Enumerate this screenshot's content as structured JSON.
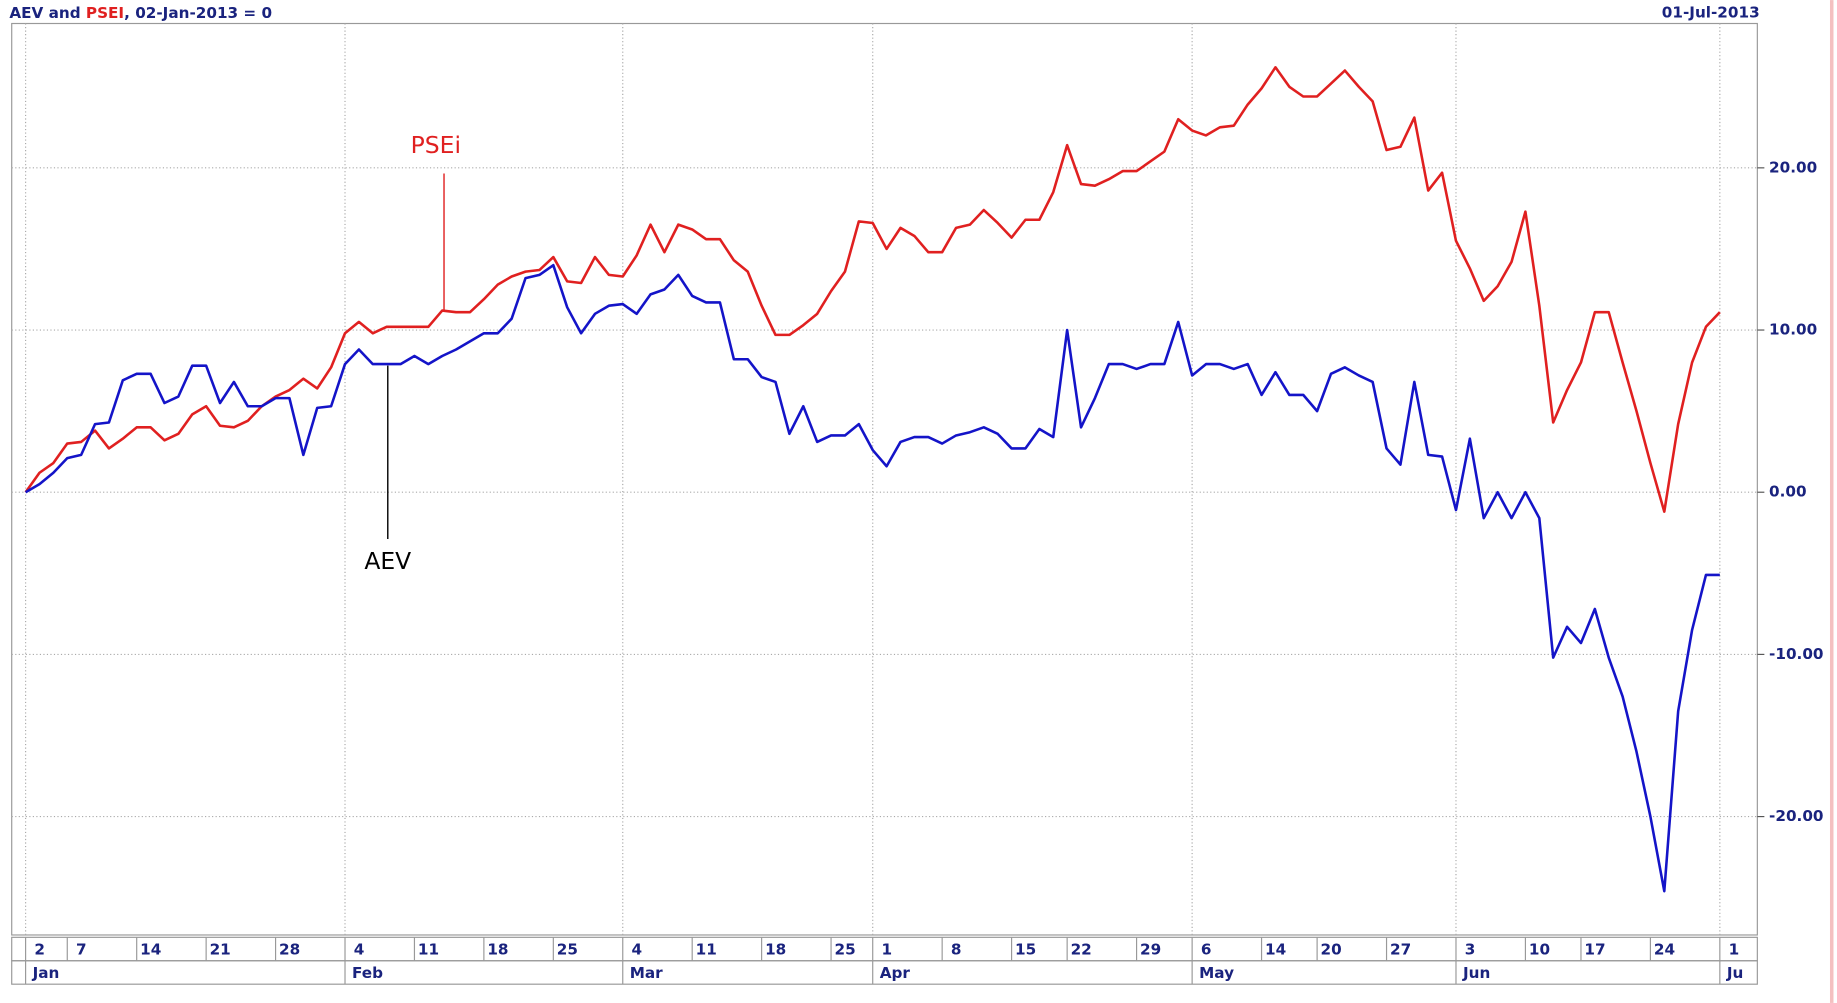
{
  "chart_data": {
    "type": "line",
    "title": [
      "AEV and ",
      "PSEI",
      ", 02-Jan-2013 = 0"
    ],
    "end_date": "01-Jul-2013",
    "annotations": [
      "PSEi",
      "AEV"
    ],
    "x": [
      0,
      1,
      2,
      3,
      4,
      5,
      6,
      7,
      8,
      9,
      10,
      11,
      12,
      13,
      14,
      15,
      16,
      17,
      18,
      19,
      20,
      21,
      22,
      23,
      24,
      25,
      26,
      27,
      28,
      29,
      30,
      31,
      32,
      33,
      34,
      35,
      36,
      37,
      38,
      39,
      40,
      41,
      42,
      43,
      44,
      45,
      46,
      47,
      48,
      49,
      50,
      51,
      52,
      53,
      54,
      55,
      56,
      57,
      58,
      59,
      60,
      61,
      62,
      63,
      64,
      65,
      66,
      67,
      68,
      69,
      70,
      71,
      72,
      73,
      74,
      75,
      76,
      77,
      78,
      79,
      80,
      81,
      82,
      83,
      84,
      85,
      86,
      87,
      88,
      89,
      90,
      91,
      92,
      93,
      94,
      95,
      96,
      97,
      98,
      99,
      100,
      101,
      102,
      103,
      104,
      105,
      106,
      107,
      108,
      109,
      110,
      111,
      112,
      113,
      114,
      115,
      116,
      117,
      118,
      119,
      120,
      121,
      122
    ],
    "series": [
      {
        "name": "PSEI",
        "color": "#e02020",
        "values": [
          0,
          1.2,
          1.8,
          3.0,
          3.1,
          3.8,
          2.7,
          3.3,
          4.0,
          4.0,
          3.2,
          3.6,
          4.8,
          5.3,
          4.1,
          4.0,
          4.4,
          5.3,
          5.9,
          6.3,
          7.0,
          6.4,
          7.7,
          9.8,
          10.5,
          9.8,
          10.2,
          10.2,
          10.2,
          10.2,
          11.2,
          11.1,
          11.1,
          11.9,
          12.8,
          13.3,
          13.6,
          13.7,
          14.5,
          13.0,
          12.9,
          14.5,
          13.4,
          13.3,
          14.6,
          16.5,
          14.8,
          16.5,
          16.2,
          15.6,
          15.6,
          14.3,
          13.6,
          11.5,
          9.7,
          9.7,
          10.3,
          11.0,
          12.4,
          13.6,
          16.7,
          16.6,
          15.0,
          16.3,
          15.8,
          14.8,
          14.8,
          16.3,
          16.5,
          17.4,
          16.6,
          15.7,
          16.8,
          16.8,
          18.5,
          21.4,
          19.0,
          18.9,
          19.3,
          19.8,
          19.8,
          20.4,
          21.0,
          23.0,
          22.3,
          22.0,
          22.5,
          22.6,
          23.9,
          24.9,
          26.2,
          25.0,
          24.4,
          24.4,
          25.2,
          26.0,
          25.0,
          24.1,
          21.1,
          21.3,
          23.1,
          18.6,
          19.7,
          15.5,
          13.8,
          11.8,
          12.7,
          14.2,
          17.3,
          11.5,
          4.3,
          6.3,
          8.0,
          11.1,
          11.1,
          8.0,
          5.0,
          1.8,
          -1.2,
          4.2,
          8.0,
          10.2,
          11.1
        ]
      },
      {
        "name": "AEV",
        "color": "#1414c8",
        "values": [
          0,
          0.5,
          1.2,
          2.1,
          2.3,
          4.2,
          4.3,
          6.9,
          7.3,
          7.3,
          5.5,
          5.9,
          7.8,
          7.8,
          5.5,
          6.8,
          5.3,
          5.3,
          5.8,
          5.8,
          2.3,
          5.2,
          5.3,
          7.9,
          8.8,
          7.9,
          7.9,
          7.9,
          8.4,
          7.9,
          8.4,
          8.8,
          9.3,
          9.8,
          9.8,
          10.7,
          13.2,
          13.4,
          14.0,
          11.4,
          9.8,
          11.0,
          11.5,
          11.6,
          11.0,
          12.2,
          12.5,
          13.4,
          12.1,
          11.7,
          11.7,
          8.2,
          8.2,
          7.1,
          6.8,
          3.6,
          5.3,
          3.1,
          3.5,
          3.5,
          4.2,
          2.6,
          1.6,
          3.1,
          3.4,
          3.4,
          3.0,
          3.5,
          3.7,
          4.0,
          3.6,
          2.7,
          2.7,
          3.9,
          3.4,
          10.0,
          4.0,
          5.8,
          7.9,
          7.9,
          7.6,
          7.9,
          7.9,
          10.5,
          7.2,
          7.9,
          7.9,
          7.6,
          7.9,
          6.0,
          7.4,
          6.0,
          6.0,
          5.0,
          7.3,
          7.7,
          7.2,
          6.8,
          2.7,
          1.7,
          6.8,
          2.3,
          2.2,
          -1.1,
          3.3,
          -1.6,
          0.0,
          -1.6,
          0.0,
          -1.6,
          -10.2,
          -8.3,
          -9.3,
          -7.2,
          -10.2,
          -12.6,
          -16.0,
          -20.0,
          -24.6,
          -13.5,
          -8.5,
          -5.1,
          -5.1
        ]
      }
    ],
    "xlim": [
      -1,
      124.7
    ],
    "xticks": [
      {
        "value": 0,
        "label": "2"
      },
      {
        "value": 3,
        "label": "7"
      },
      {
        "value": 8,
        "label": "14"
      },
      {
        "value": 13,
        "label": "21"
      },
      {
        "value": 18,
        "label": "28"
      },
      {
        "value": 23,
        "label": "4"
      },
      {
        "value": 28,
        "label": "11"
      },
      {
        "value": 33,
        "label": "18"
      },
      {
        "value": 38,
        "label": "25"
      },
      {
        "value": 43,
        "label": "4"
      },
      {
        "value": 48,
        "label": "11"
      },
      {
        "value": 53,
        "label": "18"
      },
      {
        "value": 58,
        "label": "25"
      },
      {
        "value": 61,
        "label": "1"
      },
      {
        "value": 66,
        "label": "8"
      },
      {
        "value": 71,
        "label": "15"
      },
      {
        "value": 75,
        "label": "22"
      },
      {
        "value": 80,
        "label": "29"
      },
      {
        "value": 84,
        "label": "6"
      },
      {
        "value": 89,
        "label": "14"
      },
      {
        "value": 93,
        "label": "20"
      },
      {
        "value": 98,
        "label": "27"
      },
      {
        "value": 103,
        "label": "3"
      },
      {
        "value": 108,
        "label": "10"
      },
      {
        "value": 112,
        "label": "17"
      },
      {
        "value": 117,
        "label": "24"
      },
      {
        "value": 122,
        "label": "1"
      }
    ],
    "month_ticks": [
      {
        "value": 0,
        "label": "Jan"
      },
      {
        "value": 23,
        "label": "Feb"
      },
      {
        "value": 43,
        "label": "Mar"
      },
      {
        "value": 61,
        "label": "Apr"
      },
      {
        "value": 84,
        "label": "May"
      },
      {
        "value": 103,
        "label": "Jun"
      },
      {
        "value": 122,
        "label": "Ju"
      }
    ],
    "ylim": [
      -27.3,
      28.9
    ],
    "yticks": [
      {
        "value": 20,
        "label": "20.00"
      },
      {
        "value": 10,
        "label": "10.00"
      },
      {
        "value": 0,
        "label": "0.00"
      },
      {
        "value": -10,
        "label": "-10.00"
      },
      {
        "value": -20,
        "label": "-20.00"
      }
    ],
    "grid": true
  }
}
